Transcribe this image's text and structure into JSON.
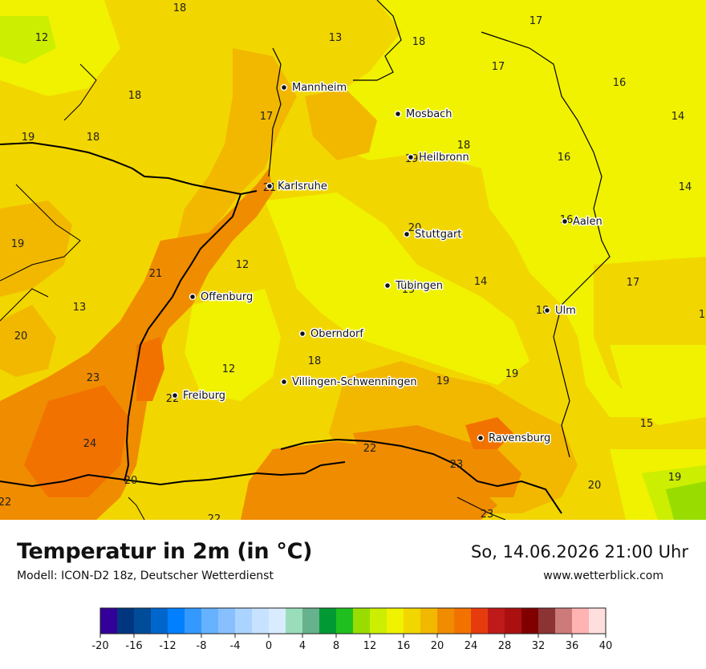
{
  "title": "Temperatur in 2m (in °C)",
  "subtitle": "Modell: ICON-D2 18z, Deutscher Wetterdienst",
  "datetime": "So, 14.06.2026 21:00 Uhr",
  "website": "www.wetterblick.com",
  "cities": [
    {
      "name": "Mannheim"
    },
    {
      "name": "Mosbach"
    },
    {
      "name": "Heilbronn"
    },
    {
      "name": "Karlsruhe"
    },
    {
      "name": "Aalen"
    },
    {
      "name": "Stuttgart"
    },
    {
      "name": "Tübingen"
    },
    {
      "name": "Offenburg"
    },
    {
      "name": "Ulm"
    },
    {
      "name": "Oberndorf"
    },
    {
      "name": "Villingen-Schwenningen"
    },
    {
      "name": "Freiburg"
    },
    {
      "name": "Ravensburg"
    }
  ],
  "values": [
    "18",
    "12",
    "13",
    "18",
    "17",
    "17",
    "16",
    "18",
    "17",
    "19",
    "18",
    "14",
    "18",
    "16",
    "19",
    "21",
    "14",
    "20",
    "16",
    "19",
    "12",
    "21",
    "14",
    "17",
    "13",
    "19",
    "18",
    "1",
    "20",
    "18",
    "23",
    "12",
    "19",
    "19",
    "22",
    "24",
    "15",
    "22",
    "23",
    "20",
    "19",
    "22",
    "20",
    "23",
    "22"
  ],
  "legend": {
    "colors": [
      "#330099",
      "#00367f",
      "#004c99",
      "#0066cc",
      "#0080ff",
      "#3399ff",
      "#66b2ff",
      "#88c0ff",
      "#aad4ff",
      "#c6e2ff",
      "#d9ecff",
      "#99ddbb",
      "#66b28c",
      "#009933",
      "#1fbf1f",
      "#99dd00",
      "#ccee00",
      "#f0f200",
      "#f2d600",
      "#f2b800",
      "#f08c00",
      "#f27200",
      "#e63b0d",
      "#bf1a1a",
      "#aa1010",
      "#800000",
      "#8c3333",
      "#cc7a7a",
      "#ffb3b3",
      "#ffdede"
    ],
    "ticks": [
      "-20",
      "-16",
      "-12",
      "-8",
      "-4",
      "0",
      "4",
      "8",
      "12",
      "16",
      "20",
      "24",
      "28",
      "32",
      "36",
      "40"
    ]
  }
}
